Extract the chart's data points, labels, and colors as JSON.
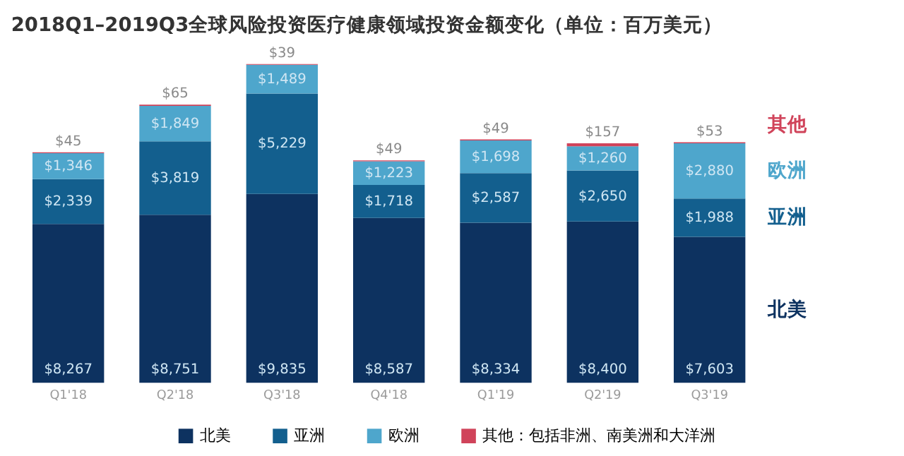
{
  "chart_data": {
    "type": "bar",
    "stacked": true,
    "title": "2018Q1–2019Q3全球风险投资医疗健康领域投资金额变化（单位：百万美元）",
    "categories": [
      "Q1'18",
      "Q2'18",
      "Q3'18",
      "Q4'18",
      "Q1'19",
      "Q2'19",
      "Q3'19"
    ],
    "series": [
      {
        "name": "北美",
        "color": "#0d3260",
        "values": [
          8267,
          8751,
          9835,
          8587,
          8334,
          8400,
          7603
        ],
        "value_labels": [
          "$8,267",
          "$8,751",
          "$9,835",
          "$8,587",
          "$8,334",
          "$8,400",
          "$7,603"
        ]
      },
      {
        "name": "亚洲",
        "color": "#135f8e",
        "values": [
          2339,
          3819,
          5229,
          1718,
          2587,
          2650,
          1988
        ],
        "value_labels": [
          "$2,339",
          "$3,819",
          "$5,229",
          "$1,718",
          "$2,587",
          "$2,650",
          "$1,988"
        ]
      },
      {
        "name": "欧洲",
        "color": "#4ea6cc",
        "values": [
          1346,
          1849,
          1489,
          1223,
          1698,
          1260,
          2880
        ],
        "value_labels": [
          "$1,346",
          "$1,849",
          "$1,489",
          "$1,223",
          "$1,698",
          "$1,260",
          "$2,880"
        ]
      },
      {
        "name": "其他：包括非洲、南美洲和大洋洲",
        "color": "#d0435a",
        "values": [
          45,
          65,
          39,
          49,
          49,
          157,
          53
        ],
        "value_labels": [
          "$45",
          "$65",
          "$39",
          "$49",
          "$49",
          "$157",
          "$53"
        ]
      }
    ],
    "tick_labels": "x",
    "legend": "bottom",
    "annotations": [
      "北美",
      "亚洲",
      "欧洲",
      "其他"
    ]
  }
}
